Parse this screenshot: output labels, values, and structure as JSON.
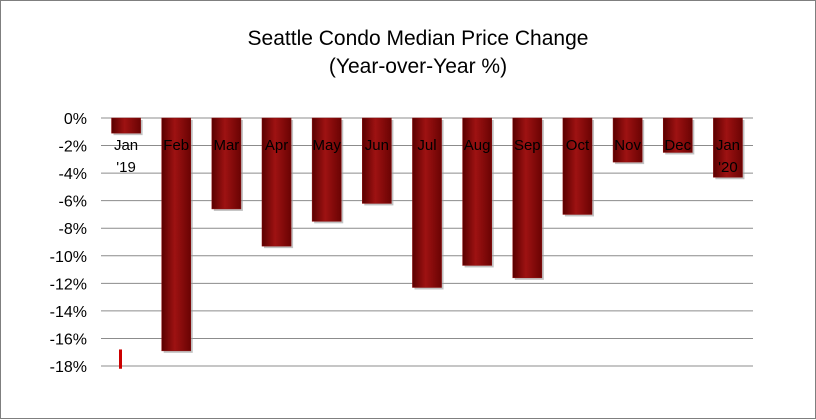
{
  "chart_data": {
    "type": "bar",
    "title": "Seattle Condo Median Price Change",
    "subtitle": "(Year-over-Year %)",
    "categories": [
      [
        "Jan",
        "'19"
      ],
      [
        "Feb"
      ],
      [
        "Mar"
      ],
      [
        "Apr"
      ],
      [
        "May"
      ],
      [
        "Jun"
      ],
      [
        "Jul"
      ],
      [
        "Aug"
      ],
      [
        "Sep"
      ],
      [
        "Oct"
      ],
      [
        "Nov"
      ],
      [
        "Dec"
      ],
      [
        "Jan",
        "'20"
      ]
    ],
    "values": [
      -1.1,
      -16.9,
      -6.6,
      -9.3,
      -7.5,
      -6.2,
      -12.3,
      -10.7,
      -11.6,
      -7.0,
      -3.2,
      -2.5,
      -4.3
    ],
    "ylim": [
      -18,
      0
    ],
    "yticks": [
      0,
      -2,
      -4,
      -6,
      -8,
      -10,
      -12,
      -14,
      -16,
      -18
    ],
    "ytick_labels": [
      "0%",
      "-2%",
      "-4%",
      "-6%",
      "-8%",
      "-10%",
      "-12%",
      "-14%",
      "-16%",
      "-18%"
    ],
    "grid": true,
    "legend": "none",
    "bar_color": "#8b0a0a",
    "marker_color": "#cc0000"
  }
}
